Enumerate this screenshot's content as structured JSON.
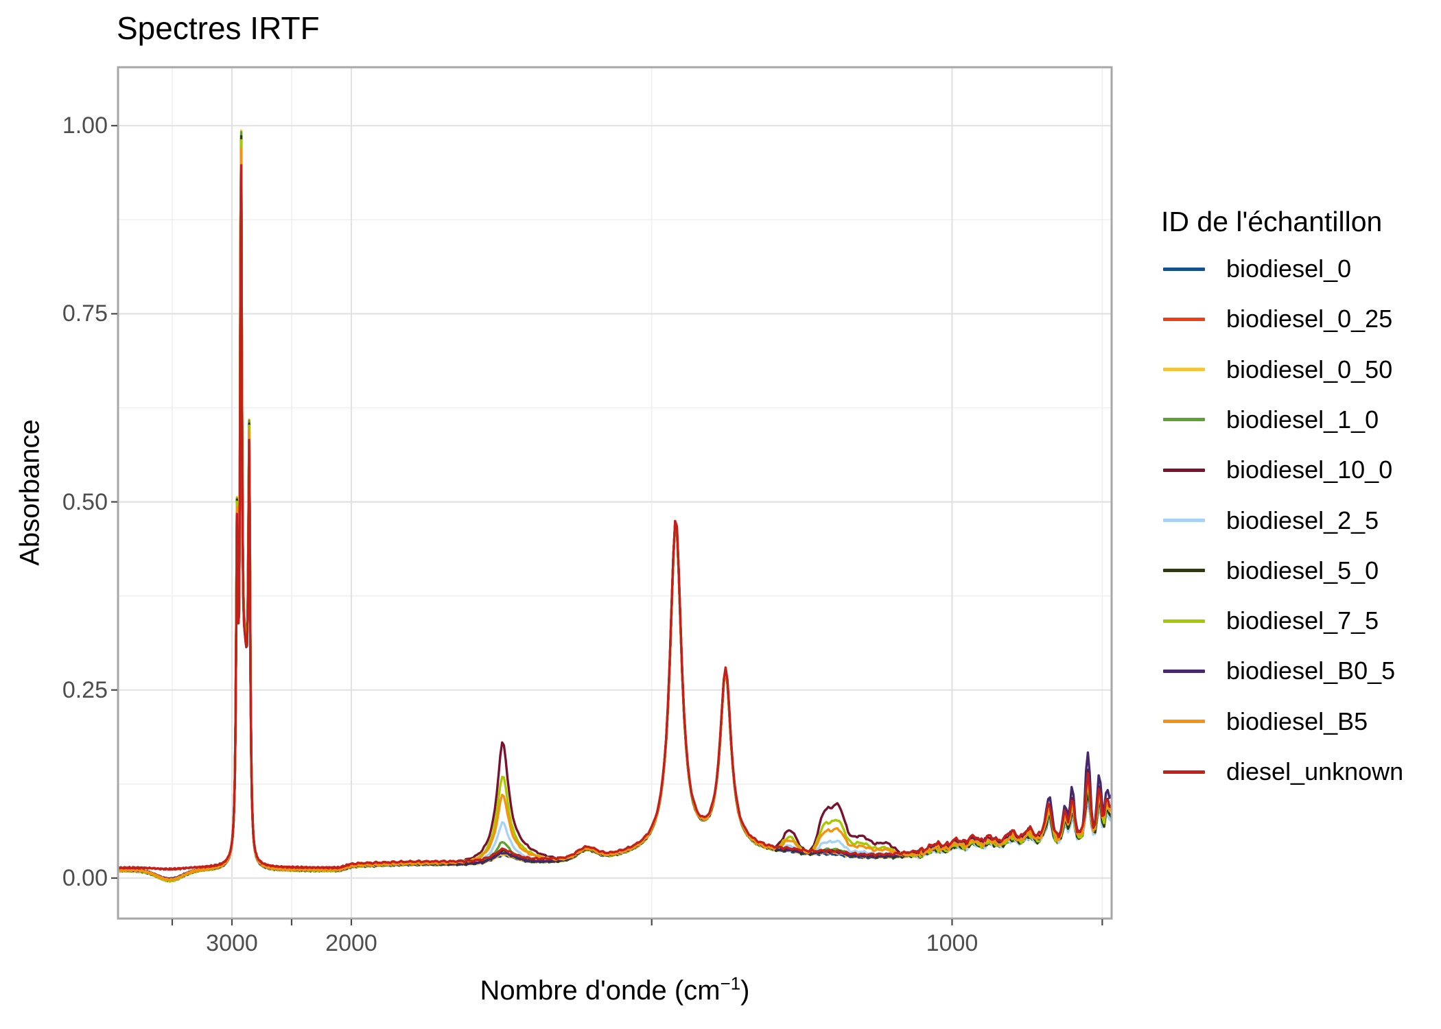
{
  "title": "Spectres IRTF",
  "axes": {
    "x": {
      "title_pre": "Nombre d'onde (cm",
      "title_sup": "−1",
      "title_post": ")",
      "major_ticks": [
        {
          "value": 3000,
          "label": "3000"
        },
        {
          "value": 2000,
          "label": "2000"
        },
        {
          "value": 1000,
          "label": "1000"
        }
      ],
      "minor_ticks": [
        3500,
        2500,
        1500,
        750
      ],
      "direction": "reversed"
    },
    "y": {
      "title": "Absorbance",
      "major_ticks": [
        {
          "value": 1.0,
          "label": "1.00"
        },
        {
          "value": 0.75,
          "label": "0.75"
        },
        {
          "value": 0.5,
          "label": "0.50"
        },
        {
          "value": 0.25,
          "label": "0.25"
        },
        {
          "value": 0.0,
          "label": "0.00"
        }
      ],
      "minor_ticks": [
        0.875,
        0.625,
        0.375,
        0.125
      ]
    }
  },
  "legend": {
    "title": "ID de l'échantillon",
    "entries": [
      {
        "label": "biodiesel_0",
        "color": "#14508E"
      },
      {
        "label": "biodiesel_0_25",
        "color": "#F23D12"
      },
      {
        "label": "biodiesel_0_50",
        "color": "#F4C53C"
      },
      {
        "label": "biodiesel_1_0",
        "color": "#5EA032"
      },
      {
        "label": "biodiesel_10_0",
        "color": "#78122F"
      },
      {
        "label": "biodiesel_2_5",
        "color": "#A9D3F5"
      },
      {
        "label": "biodiesel_5_0",
        "color": "#2C3B08"
      },
      {
        "label": "biodiesel_7_5",
        "color": "#A8C800"
      },
      {
        "label": "biodiesel_B0_5",
        "color": "#46286F"
      },
      {
        "label": "biodiesel_B5",
        "color": "#F79210"
      },
      {
        "label": "diesel_unknown",
        "color": "#C4201A"
      }
    ]
  },
  "chart_data": {
    "type": "line",
    "title": "Spectres IRTF",
    "xlabel": "Nombre d'onde (cm^-1)",
    "ylabel": "Absorbance",
    "x_axis": {
      "range_left": 3954,
      "range_right": 735,
      "direction": "reversed",
      "scale_break": 2000,
      "compression_above_break": 5,
      "ticks": [
        3000,
        2000,
        1000
      ],
      "minor_ticks": [
        3500,
        2500,
        1500,
        750
      ]
    },
    "y_axis": {
      "range": [
        -0.054,
        1.077
      ],
      "ticks": [
        0.0,
        0.25,
        0.5,
        0.75,
        1.0
      ],
      "grid": true
    },
    "legend_position": "right",
    "model": {
      "baseline": 0.0095,
      "pedestal_anchors": [
        [
          3954,
          0.0
        ],
        [
          2100,
          0.0
        ],
        [
          1980,
          0.006
        ],
        [
          1900,
          0.008
        ],
        [
          1820,
          0.008
        ],
        [
          1700,
          0.01
        ],
        [
          1600,
          0.012
        ],
        [
          1520,
          0.018
        ],
        [
          1470,
          0.021
        ],
        [
          1430,
          0.022
        ],
        [
          1395,
          0.023
        ],
        [
          1340,
          0.024
        ],
        [
          1300,
          0.022
        ],
        [
          1250,
          0.0205
        ],
        [
          1190,
          0.018
        ],
        [
          1150,
          0.016
        ],
        [
          1100,
          0.017
        ],
        [
          1050,
          0.02
        ],
        [
          1000,
          0.026
        ],
        [
          950,
          0.03
        ],
        [
          900,
          0.033
        ],
        [
          860,
          0.036
        ],
        [
          820,
          0.04
        ],
        [
          780,
          0.044
        ],
        [
          750,
          0.047
        ],
        [
          735,
          0.048
        ]
      ],
      "peaks": [
        {
          "type": "L",
          "c": 2957,
          "g": 10,
          "a": 0.47,
          "scale": "ch"
        },
        {
          "type": "L",
          "c": 2924,
          "g": 9,
          "a": 0.97,
          "scale": "ch"
        },
        {
          "type": "L",
          "c": 2855,
          "g": 9.5,
          "a": 0.55,
          "scale": "ch"
        },
        {
          "type": "G",
          "c": 2890,
          "g": 33,
          "a": 0.24,
          "scale": "ch"
        },
        {
          "type": "G",
          "c": 3520,
          "g": 150,
          "a": -1.0,
          "scale": "dip"
        },
        {
          "type": "G",
          "c": 1745,
          "g": 28,
          "a": 0.008,
          "scale": "fixed"
        },
        {
          "type": "L",
          "c": 1748,
          "g": 11,
          "a": 0.92,
          "scale": "ester"
        },
        {
          "type": "G",
          "c": 1725,
          "g": 45,
          "a": 0.08,
          "scale": "ester"
        },
        {
          "type": "G",
          "c": 1608,
          "g": 22,
          "a": 0.013,
          "scale": "fixed"
        },
        {
          "type": "L",
          "c": 1460,
          "g": 11.5,
          "a": 0.44,
          "scale": "fixed"
        },
        {
          "type": "L",
          "c": 1377,
          "g": 11,
          "a": 0.235,
          "scale": "fixed"
        },
        {
          "type": "G",
          "c": 1270,
          "g": 16,
          "a": 0.45,
          "scale": "co"
        },
        {
          "type": "G",
          "c": 1213,
          "g": 14,
          "a": 0.8,
          "scale": "co"
        },
        {
          "type": "G",
          "c": 1190,
          "g": 16,
          "a": 1.0,
          "scale": "co"
        },
        {
          "type": "G",
          "c": 1152,
          "g": 24,
          "a": 0.45,
          "scale": "co"
        },
        {
          "type": "G",
          "c": 1110,
          "g": 20,
          "a": 0.28,
          "scale": "co"
        },
        {
          "type": "G",
          "c": 1028,
          "g": 13,
          "a": 0.005,
          "scale": "wiggle"
        },
        {
          "type": "G",
          "c": 993,
          "g": 11,
          "a": 0.007,
          "scale": "wiggle"
        },
        {
          "type": "G",
          "c": 965,
          "g": 10,
          "a": 0.009,
          "scale": "wiggle"
        },
        {
          "type": "G",
          "c": 938,
          "g": 10,
          "a": 0.007,
          "scale": "wiggle"
        },
        {
          "type": "G",
          "c": 901,
          "g": 11,
          "a": 0.011,
          "scale": "wiggle"
        },
        {
          "type": "G",
          "c": 872,
          "g": 10,
          "a": 0.013,
          "scale": "wiggle"
        },
        {
          "type": "G",
          "c": 845,
          "g": 8,
          "a": 0.014,
          "scale": "wiggle"
        },
        {
          "type": "G",
          "c": 838,
          "g": 6,
          "a": 0.035,
          "scale": "spike"
        },
        {
          "type": "G",
          "c": 812,
          "g": 5,
          "a": 0.03,
          "scale": "spike"
        },
        {
          "type": "G",
          "c": 800,
          "g": 5,
          "a": 0.045,
          "scale": "spike"
        },
        {
          "type": "G",
          "c": 774,
          "g": 5.5,
          "a": 0.075,
          "scale": "spike"
        },
        {
          "type": "G",
          "c": 755,
          "g": 5,
          "a": 0.055,
          "scale": "spike"
        },
        {
          "type": "G",
          "c": 743,
          "g": 4,
          "a": 0.035,
          "scale": "spike"
        },
        {
          "type": "G",
          "c": 735,
          "g": 6,
          "a": 0.03,
          "scale": "spike"
        }
      ]
    },
    "series": [
      {
        "name": "biodiesel_0",
        "color": "#14508E",
        "ch": 0.9,
        "ester": 0.003,
        "co": 0.002,
        "lift": 0.0,
        "dip": 0.013,
        "right_base": 0.001,
        "wiggle": 0.7,
        "spike": 0.65,
        "seed": 1,
        "peak_2925_abs": 1.0,
        "peak_1745_abs": 0.025
      },
      {
        "name": "biodiesel_0_25",
        "color": "#F23D12",
        "ch": 0.905,
        "ester": 0.004,
        "co": 0.003,
        "lift": 0.001,
        "dip": 0.013,
        "right_base": 0.001,
        "wiggle": 0.75,
        "spike": 0.7,
        "seed": 2,
        "peak_2925_abs": 1.005,
        "peak_1745_abs": 0.026
      },
      {
        "name": "biodiesel_0_50",
        "color": "#F4C53C",
        "ch": 0.925,
        "ester": 0.004,
        "co": 0.004,
        "lift": 0.0,
        "dip": 0.014,
        "right_base": 0.001,
        "wiggle": 0.8,
        "spike": 0.75,
        "seed": 3,
        "peak_2925_abs": 1.027,
        "peak_1745_abs": 0.026
      },
      {
        "name": "biodiesel_1_0",
        "color": "#5EA032",
        "ch": 0.922,
        "ester": 0.021,
        "co": 0.008,
        "lift": 0.0,
        "dip": 0.013,
        "right_base": 0.001,
        "wiggle": 0.75,
        "spike": 0.7,
        "seed": 4,
        "peak_2925_abs": 1.025,
        "peak_1745_abs": 0.042
      },
      {
        "name": "biodiesel_10_0",
        "color": "#78122F",
        "ch": 0.895,
        "ester": 0.155,
        "co": 0.062,
        "lift": 0.001,
        "dip": 0.012,
        "right_base": 0.004,
        "wiggle": 1.0,
        "spike": 1.12,
        "seed": 5,
        "peak_2925_abs": 0.995,
        "peak_1745_abs": 0.175
      },
      {
        "name": "biodiesel_2_5",
        "color": "#A9D3F5",
        "ch": 0.91,
        "ester": 0.047,
        "co": 0.018,
        "lift": 0.0,
        "dip": 0.013,
        "right_base": 0.0,
        "wiggle": 0.75,
        "spike": 0.68,
        "seed": 6,
        "peak_2925_abs": 1.01,
        "peak_1745_abs": 0.068
      },
      {
        "name": "biodiesel_5_0",
        "color": "#2C3B08",
        "ch": 0.918,
        "ester": 0.009,
        "co": 0.006,
        "lift": 0.0,
        "dip": 0.013,
        "right_base": 0.001,
        "wiggle": 0.8,
        "spike": 0.8,
        "seed": 7,
        "peak_2925_abs": 1.02,
        "peak_1745_abs": 0.031
      },
      {
        "name": "biodiesel_7_5",
        "color": "#A8C800",
        "ch": 0.913,
        "ester": 0.111,
        "co": 0.044,
        "lift": 0.0,
        "dip": 0.013,
        "right_base": 0.002,
        "wiggle": 0.9,
        "spike": 0.95,
        "seed": 8,
        "peak_2925_abs": 1.015,
        "peak_1745_abs": 0.132
      },
      {
        "name": "biodiesel_B0_5",
        "color": "#46286F",
        "ch": 0.885,
        "ester": 0.005,
        "co": 0.004,
        "lift": 0.001,
        "dip": 0.012,
        "right_base": 0.004,
        "wiggle": 1.0,
        "spike": 1.45,
        "seed": 9,
        "peak_2925_abs": 0.985,
        "peak_1745_abs": 0.027
      },
      {
        "name": "biodiesel_B5",
        "color": "#F79210",
        "ch": 0.9,
        "ester": 0.084,
        "co": 0.032,
        "lift": 0.001,
        "dip": 0.013,
        "right_base": 0.002,
        "wiggle": 0.95,
        "spike": 1.0,
        "seed": 10,
        "peak_2925_abs": 1.0,
        "peak_1745_abs": 0.105
      },
      {
        "name": "diesel_unknown",
        "color": "#C4201A",
        "ch": 0.877,
        "ester": 0.007,
        "co": 0.002,
        "lift": 0.004,
        "dip": 0.002,
        "right_base": 0.004,
        "wiggle": 1.0,
        "spike": 1.0,
        "seed": 11,
        "peak_2925_abs": 0.978,
        "peak_1745_abs": 0.03
      }
    ]
  },
  "style": {
    "panel_background": "#FFFFFF",
    "panel_border": "#A7A7A7",
    "grid_major": "#E2E2E2",
    "grid_minor": "#EFEFEF",
    "tick_color": "#4A4A4A",
    "tick_label_color": "#4D4D4D",
    "text_color": "#000000"
  }
}
